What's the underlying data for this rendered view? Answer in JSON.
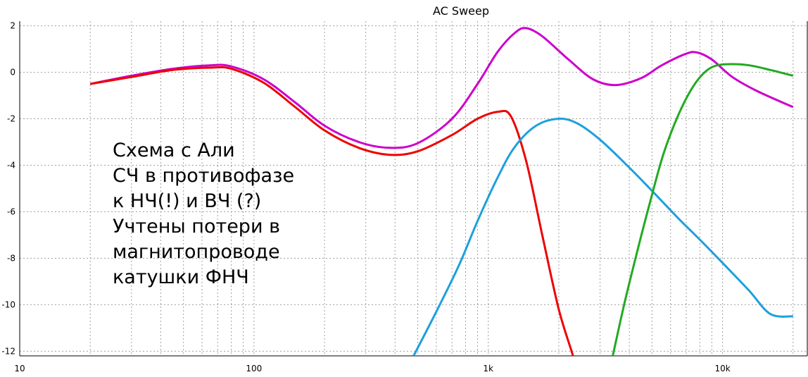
{
  "chart_data": {
    "type": "line",
    "title": "AC Sweep",
    "xscale": "log",
    "xlim": [
      10,
      23000
    ],
    "ylim": [
      -12.2,
      2.2
    ],
    "grid": true,
    "x_ticks": [
      10,
      100,
      1000,
      10000
    ],
    "x_tick_labels": [
      "10",
      "100",
      "1k",
      "10k"
    ],
    "y_ticks": [
      2,
      0,
      -2,
      -4,
      -6,
      -8,
      -10,
      -12
    ],
    "y_tick_labels": [
      "2",
      "0",
      "-2",
      "-4",
      "-6",
      "-8",
      "-10",
      "-12"
    ],
    "series": [
      {
        "color": "#cc00cc",
        "x": [
          20,
          30,
          45,
          65,
          80,
          110,
          150,
          200,
          280,
          380,
          500,
          700,
          900,
          1100,
          1300,
          1450,
          1700,
          2200,
          2800,
          3500,
          4500,
          5500,
          7000,
          7800,
          9000,
          11000,
          14000,
          20000
        ],
        "y": [
          -0.5,
          -0.15,
          0.15,
          0.3,
          0.25,
          -0.3,
          -1.3,
          -2.3,
          -3.0,
          -3.25,
          -3.05,
          -2.0,
          -0.5,
          0.9,
          1.7,
          1.9,
          1.55,
          0.55,
          -0.3,
          -0.55,
          -0.25,
          0.3,
          0.8,
          0.85,
          0.55,
          -0.2,
          -0.8,
          -1.5
        ]
      },
      {
        "color": "#ee0000",
        "x": [
          20,
          30,
          45,
          65,
          80,
          110,
          150,
          200,
          280,
          380,
          500,
          700,
          900,
          1100,
          1250,
          1450,
          1700,
          2000,
          2300,
          2500
        ],
        "y": [
          -0.5,
          -0.2,
          0.1,
          0.2,
          0.15,
          -0.45,
          -1.5,
          -2.5,
          -3.25,
          -3.55,
          -3.4,
          -2.7,
          -2.0,
          -1.7,
          -1.9,
          -3.8,
          -7.0,
          -10.2,
          -12.2,
          -13.5
        ]
      },
      {
        "color": "#1ea0dc",
        "x": [
          480,
          600,
          750,
          900,
          1100,
          1300,
          1600,
          2000,
          2400,
          3000,
          4000,
          5000,
          6500,
          8000,
          10000,
          13000,
          16000,
          20000
        ],
        "y": [
          -12.2,
          -10.3,
          -8.3,
          -6.4,
          -4.5,
          -3.2,
          -2.3,
          -2.0,
          -2.2,
          -2.9,
          -4.1,
          -5.1,
          -6.3,
          -7.2,
          -8.2,
          -9.4,
          -10.4,
          -10.5
        ]
      },
      {
        "color": "#22aa22",
        "x": [
          3400,
          3800,
          4300,
          4900,
          5600,
          6500,
          7500,
          8500,
          9500,
          11000,
          13000,
          16000,
          20000
        ],
        "y": [
          -12.2,
          -10.0,
          -7.8,
          -5.6,
          -3.5,
          -1.8,
          -0.6,
          0.05,
          0.3,
          0.35,
          0.3,
          0.1,
          -0.15
        ]
      }
    ]
  },
  "annotation": {
    "lines": [
      "Схема с Али",
      "СЧ в противофазе",
      "к НЧ(!) и ВЧ (?)",
      "Учтены потери в",
      "магнитопроводе",
      "катушки ФНЧ"
    ]
  }
}
